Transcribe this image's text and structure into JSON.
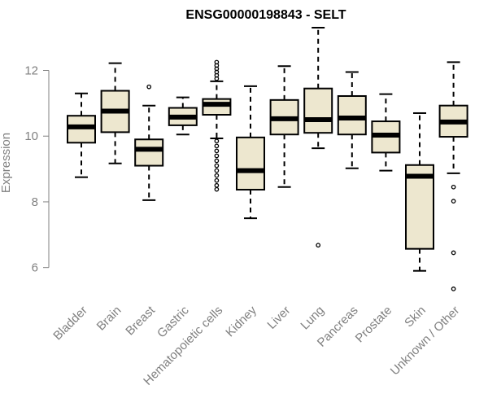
{
  "chart_data": {
    "type": "boxplot",
    "title": "ENSG00000198843 - SELT",
    "xlabel": "",
    "ylabel": "Expression",
    "ylim": [
      5.1,
      13.4
    ],
    "yticks": [
      6,
      8,
      10,
      12
    ],
    "box_color": "#EDE7CF",
    "categories": [
      "Bladder",
      "Brain",
      "Breast",
      "Gastric",
      "Hematopoietic cells",
      "Kidney",
      "Liver",
      "Lung",
      "Pancreas",
      "Prostate",
      "Skin",
      "Unknown / Other"
    ],
    "boxes": [
      {
        "whisker_low": 8.75,
        "q1": 9.8,
        "median": 10.28,
        "q3": 10.62,
        "whisker_high": 11.3,
        "outliers": []
      },
      {
        "whisker_low": 9.17,
        "q1": 10.12,
        "median": 10.76,
        "q3": 11.38,
        "whisker_high": 12.22,
        "outliers": []
      },
      {
        "whisker_low": 8.05,
        "q1": 9.1,
        "median": 9.6,
        "q3": 9.9,
        "whisker_high": 10.93,
        "outliers": [
          11.5
        ]
      },
      {
        "whisker_low": 10.05,
        "q1": 10.33,
        "median": 10.58,
        "q3": 10.86,
        "whisker_high": 11.18,
        "outliers": []
      },
      {
        "whisker_low": 9.93,
        "q1": 10.65,
        "median": 10.97,
        "q3": 11.13,
        "whisker_high": 11.67,
        "outliers": [
          11.75,
          11.85,
          11.95,
          12.05,
          12.15,
          12.25,
          9.85,
          9.7,
          9.55,
          9.4,
          9.25,
          9.1,
          8.95,
          8.8,
          8.65,
          8.5,
          8.38
        ]
      },
      {
        "whisker_low": 7.5,
        "q1": 8.37,
        "median": 8.95,
        "q3": 9.96,
        "whisker_high": 11.52,
        "outliers": []
      },
      {
        "whisker_low": 8.45,
        "q1": 10.05,
        "median": 10.53,
        "q3": 11.1,
        "whisker_high": 12.13,
        "outliers": []
      },
      {
        "whisker_low": 9.63,
        "q1": 10.1,
        "median": 10.5,
        "q3": 11.45,
        "whisker_high": 13.3,
        "outliers": [
          6.68
        ]
      },
      {
        "whisker_low": 9.02,
        "q1": 10.05,
        "median": 10.55,
        "q3": 11.22,
        "whisker_high": 11.95,
        "outliers": []
      },
      {
        "whisker_low": 8.95,
        "q1": 9.5,
        "median": 10.03,
        "q3": 10.45,
        "whisker_high": 11.28,
        "outliers": []
      },
      {
        "whisker_low": 5.9,
        "q1": 6.57,
        "median": 8.78,
        "q3": 9.12,
        "whisker_high": 10.7,
        "outliers": []
      },
      {
        "whisker_low": 8.87,
        "q1": 9.98,
        "median": 10.43,
        "q3": 10.93,
        "whisker_high": 12.25,
        "outliers": [
          8.45,
          8.02,
          6.45,
          5.35
        ]
      }
    ]
  }
}
